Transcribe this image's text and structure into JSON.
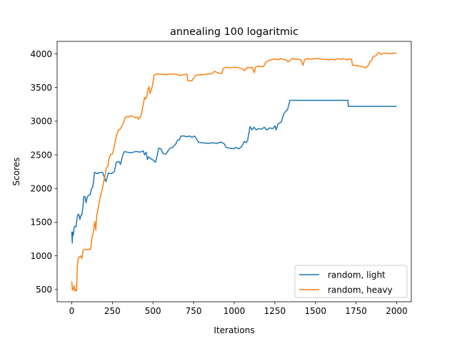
{
  "chart_data": {
    "type": "line",
    "title": "annealing 100 logaritmic",
    "xlabel": "Iterations",
    "ylabel": "Scores",
    "xlim": [
      -90,
      2090
    ],
    "ylim": [
      318,
      4185
    ],
    "xticks": [
      0,
      250,
      500,
      750,
      1000,
      1250,
      1500,
      1750,
      2000
    ],
    "yticks": [
      500,
      1000,
      1500,
      2000,
      2500,
      3000,
      3500,
      4000
    ],
    "grid": false,
    "legend_position": "lower-right",
    "series": [
      {
        "name": "random, light",
        "color": "#1f77b4",
        "points": [
          [
            0,
            1360
          ],
          [
            3,
            1190
          ],
          [
            6,
            1350
          ],
          [
            10,
            1310
          ],
          [
            14,
            1420
          ],
          [
            20,
            1440
          ],
          [
            26,
            1430
          ],
          [
            32,
            1550
          ],
          [
            38,
            1620
          ],
          [
            44,
            1610
          ],
          [
            50,
            1540
          ],
          [
            56,
            1600
          ],
          [
            62,
            1610
          ],
          [
            68,
            1700
          ],
          [
            74,
            1880
          ],
          [
            82,
            1880
          ],
          [
            88,
            1790
          ],
          [
            96,
            1880
          ],
          [
            106,
            1900
          ],
          [
            114,
            1910
          ],
          [
            122,
            2000
          ],
          [
            128,
            2010
          ],
          [
            134,
            2100
          ],
          [
            140,
            2240
          ],
          [
            150,
            2230
          ],
          [
            160,
            2220
          ],
          [
            172,
            2240
          ],
          [
            190,
            2240
          ],
          [
            210,
            2100
          ],
          [
            225,
            2230
          ],
          [
            245,
            2220
          ],
          [
            262,
            2250
          ],
          [
            275,
            2390
          ],
          [
            292,
            2400
          ],
          [
            300,
            2360
          ],
          [
            315,
            2500
          ],
          [
            325,
            2550
          ],
          [
            340,
            2540
          ],
          [
            365,
            2530
          ],
          [
            395,
            2550
          ],
          [
            420,
            2540
          ],
          [
            440,
            2560
          ],
          [
            448,
            2500
          ],
          [
            458,
            2540
          ],
          [
            466,
            2430
          ],
          [
            474,
            2470
          ],
          [
            488,
            2440
          ],
          [
            502,
            2420
          ],
          [
            515,
            2390
          ],
          [
            525,
            2480
          ],
          [
            535,
            2600
          ],
          [
            548,
            2590
          ],
          [
            562,
            2520
          ],
          [
            578,
            2510
          ],
          [
            590,
            2550
          ],
          [
            605,
            2600
          ],
          [
            622,
            2610
          ],
          [
            640,
            2660
          ],
          [
            652,
            2720
          ],
          [
            662,
            2720
          ],
          [
            672,
            2780
          ],
          [
            690,
            2780
          ],
          [
            710,
            2770
          ],
          [
            725,
            2780
          ],
          [
            740,
            2760
          ],
          [
            755,
            2780
          ],
          [
            768,
            2740
          ],
          [
            778,
            2690
          ],
          [
            800,
            2680
          ],
          [
            840,
            2670
          ],
          [
            870,
            2680
          ],
          [
            890,
            2670
          ],
          [
            920,
            2690
          ],
          [
            940,
            2660
          ],
          [
            950,
            2610
          ],
          [
            970,
            2600
          ],
          [
            995,
            2590
          ],
          [
            1010,
            2610
          ],
          [
            1030,
            2590
          ],
          [
            1045,
            2620
          ],
          [
            1062,
            2700
          ],
          [
            1072,
            2680
          ],
          [
            1082,
            2710
          ],
          [
            1090,
            2820
          ],
          [
            1098,
            2920
          ],
          [
            1110,
            2870
          ],
          [
            1122,
            2910
          ],
          [
            1135,
            2870
          ],
          [
            1150,
            2890
          ],
          [
            1168,
            2880
          ],
          [
            1185,
            2910
          ],
          [
            1200,
            2870
          ],
          [
            1218,
            2900
          ],
          [
            1238,
            2890
          ],
          [
            1252,
            2930
          ],
          [
            1258,
            2870
          ],
          [
            1270,
            2960
          ],
          [
            1290,
            2990
          ],
          [
            1305,
            3110
          ],
          [
            1318,
            3150
          ],
          [
            1328,
            3170
          ],
          [
            1338,
            3260
          ],
          [
            1342,
            3310
          ],
          [
            1400,
            3310
          ],
          [
            1500,
            3310
          ],
          [
            1600,
            3310
          ],
          [
            1700,
            3310
          ],
          [
            1702,
            3220
          ],
          [
            1800,
            3220
          ],
          [
            1900,
            3220
          ],
          [
            2000,
            3220
          ]
        ]
      },
      {
        "name": "random, heavy",
        "color": "#ff7f0e",
        "points": [
          [
            0,
            620
          ],
          [
            4,
            500
          ],
          [
            8,
            490
          ],
          [
            14,
            560
          ],
          [
            20,
            480
          ],
          [
            26,
            500
          ],
          [
            30,
            480
          ],
          [
            34,
            840
          ],
          [
            40,
            960
          ],
          [
            46,
            980
          ],
          [
            54,
            1000
          ],
          [
            62,
            960
          ],
          [
            70,
            1080
          ],
          [
            80,
            1100
          ],
          [
            94,
            1090
          ],
          [
            108,
            1100
          ],
          [
            116,
            1100
          ],
          [
            124,
            1260
          ],
          [
            134,
            1370
          ],
          [
            142,
            1510
          ],
          [
            148,
            1380
          ],
          [
            154,
            1600
          ],
          [
            162,
            1700
          ],
          [
            170,
            1800
          ],
          [
            178,
            1900
          ],
          [
            188,
            1990
          ],
          [
            196,
            2100
          ],
          [
            204,
            2180
          ],
          [
            212,
            2300
          ],
          [
            222,
            2330
          ],
          [
            230,
            2450
          ],
          [
            240,
            2510
          ],
          [
            250,
            2510
          ],
          [
            260,
            2600
          ],
          [
            270,
            2730
          ],
          [
            280,
            2820
          ],
          [
            288,
            2870
          ],
          [
            298,
            2880
          ],
          [
            308,
            2930
          ],
          [
            318,
            2970
          ],
          [
            328,
            3050
          ],
          [
            338,
            3070
          ],
          [
            348,
            3060
          ],
          [
            360,
            3080
          ],
          [
            378,
            3070
          ],
          [
            392,
            3050
          ],
          [
            402,
            3060
          ],
          [
            412,
            3030
          ],
          [
            425,
            3080
          ],
          [
            432,
            3140
          ],
          [
            440,
            3250
          ],
          [
            448,
            3350
          ],
          [
            455,
            3330
          ],
          [
            462,
            3370
          ],
          [
            470,
            3480
          ],
          [
            476,
            3510
          ],
          [
            482,
            3410
          ],
          [
            490,
            3470
          ],
          [
            498,
            3540
          ],
          [
            506,
            3680
          ],
          [
            520,
            3700
          ],
          [
            540,
            3700
          ],
          [
            580,
            3690
          ],
          [
            610,
            3700
          ],
          [
            640,
            3700
          ],
          [
            665,
            3680
          ],
          [
            690,
            3690
          ],
          [
            708,
            3700
          ],
          [
            715,
            3600
          ],
          [
            740,
            3600
          ],
          [
            762,
            3680
          ],
          [
            790,
            3690
          ],
          [
            810,
            3690
          ],
          [
            826,
            3700
          ],
          [
            848,
            3700
          ],
          [
            865,
            3710
          ],
          [
            880,
            3740
          ],
          [
            898,
            3720
          ],
          [
            910,
            3710
          ],
          [
            924,
            3710
          ],
          [
            932,
            3780
          ],
          [
            950,
            3800
          ],
          [
            975,
            3790
          ],
          [
            995,
            3800
          ],
          [
            1010,
            3800
          ],
          [
            1030,
            3790
          ],
          [
            1050,
            3780
          ],
          [
            1062,
            3750
          ],
          [
            1072,
            3780
          ],
          [
            1086,
            3800
          ],
          [
            1102,
            3790
          ],
          [
            1110,
            3800
          ],
          [
            1124,
            3720
          ],
          [
            1130,
            3800
          ],
          [
            1146,
            3820
          ],
          [
            1162,
            3810
          ],
          [
            1180,
            3810
          ],
          [
            1196,
            3880
          ],
          [
            1212,
            3900
          ],
          [
            1238,
            3920
          ],
          [
            1260,
            3920
          ],
          [
            1272,
            3910
          ],
          [
            1282,
            3930
          ],
          [
            1300,
            3920
          ],
          [
            1320,
            3910
          ],
          [
            1332,
            3880
          ],
          [
            1344,
            3900
          ],
          [
            1356,
            3930
          ],
          [
            1375,
            3920
          ],
          [
            1395,
            3920
          ],
          [
            1410,
            3910
          ],
          [
            1424,
            3830
          ],
          [
            1432,
            3910
          ],
          [
            1452,
            3930
          ],
          [
            1472,
            3920
          ],
          [
            1500,
            3930
          ],
          [
            1525,
            3930
          ],
          [
            1545,
            3920
          ],
          [
            1565,
            3920
          ],
          [
            1580,
            3910
          ],
          [
            1600,
            3920
          ],
          [
            1620,
            3910
          ],
          [
            1635,
            3930
          ],
          [
            1655,
            3920
          ],
          [
            1672,
            3930
          ],
          [
            1690,
            3910
          ],
          [
            1705,
            3920
          ],
          [
            1722,
            3920
          ],
          [
            1728,
            3830
          ],
          [
            1740,
            3830
          ],
          [
            1765,
            3820
          ],
          [
            1790,
            3810
          ],
          [
            1800,
            3800
          ],
          [
            1808,
            3790
          ],
          [
            1818,
            3810
          ],
          [
            1826,
            3830
          ],
          [
            1834,
            3880
          ],
          [
            1842,
            3890
          ],
          [
            1856,
            3960
          ],
          [
            1872,
            3970
          ],
          [
            1884,
            4010
          ],
          [
            1892,
            4020
          ],
          [
            1905,
            3990
          ],
          [
            1920,
            4010
          ],
          [
            1940,
            4010
          ],
          [
            1960,
            4000
          ],
          [
            1980,
            4010
          ],
          [
            2000,
            4010
          ]
        ]
      }
    ]
  }
}
